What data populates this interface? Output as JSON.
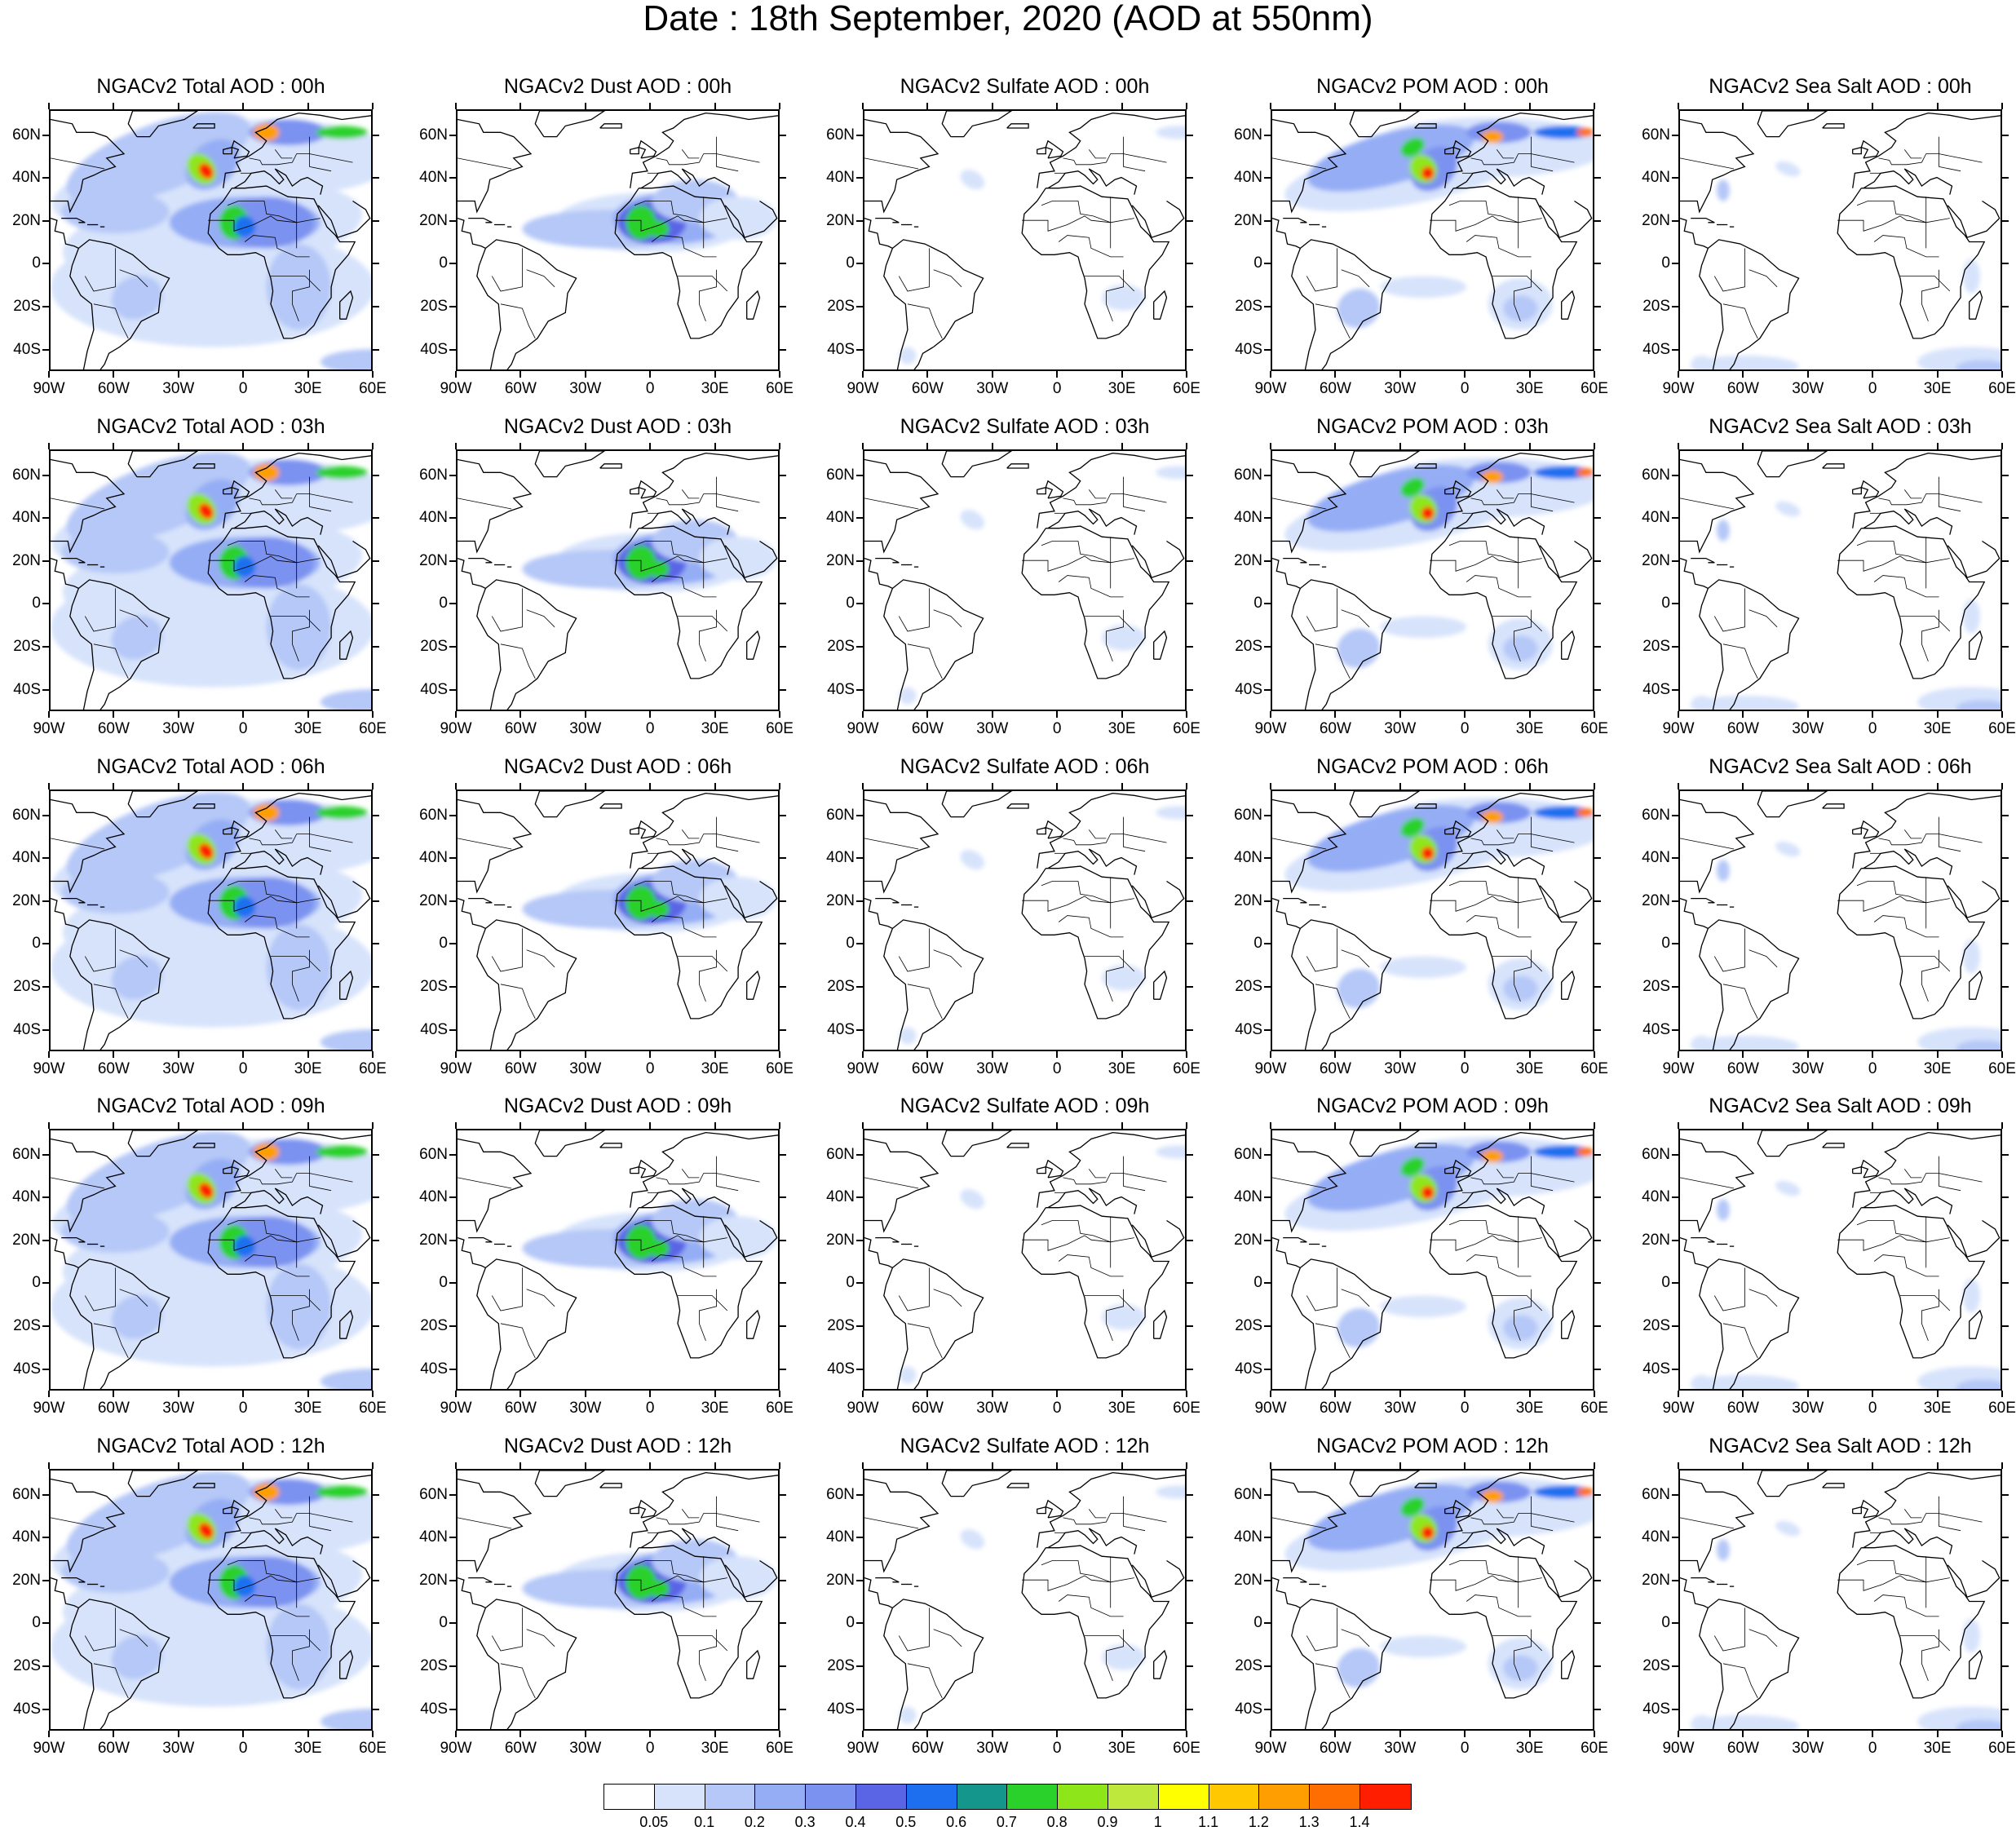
{
  "title": "Date : 18th September, 2020 (AOD at 550nm)",
  "panels": [
    {
      "row": 0,
      "col": 0,
      "title": "NGACv2 Total AOD : 00h",
      "field": "total"
    },
    {
      "row": 0,
      "col": 1,
      "title": "NGACv2 Dust AOD : 00h",
      "field": "dust"
    },
    {
      "row": 0,
      "col": 2,
      "title": "NGACv2 Sulfate AOD : 00h",
      "field": "sulfate"
    },
    {
      "row": 0,
      "col": 3,
      "title": "NGACv2 POM AOD : 00h",
      "field": "pom"
    },
    {
      "row": 0,
      "col": 4,
      "title": "NGACv2 Sea Salt AOD : 00h",
      "field": "seasalt"
    },
    {
      "row": 1,
      "col": 0,
      "title": "NGACv2 Total AOD : 03h",
      "field": "total"
    },
    {
      "row": 1,
      "col": 1,
      "title": "NGACv2 Dust AOD : 03h",
      "field": "dust"
    },
    {
      "row": 1,
      "col": 2,
      "title": "NGACv2 Sulfate AOD : 03h",
      "field": "sulfate"
    },
    {
      "row": 1,
      "col": 3,
      "title": "NGACv2 POM AOD : 03h",
      "field": "pom"
    },
    {
      "row": 1,
      "col": 4,
      "title": "NGACv2 Sea Salt AOD : 03h",
      "field": "seasalt"
    },
    {
      "row": 2,
      "col": 0,
      "title": "NGACv2 Total AOD : 06h",
      "field": "total"
    },
    {
      "row": 2,
      "col": 1,
      "title": "NGACv2 Dust AOD : 06h",
      "field": "dust"
    },
    {
      "row": 2,
      "col": 2,
      "title": "NGACv2 Sulfate AOD : 06h",
      "field": "sulfate"
    },
    {
      "row": 2,
      "col": 3,
      "title": "NGACv2 POM AOD : 06h",
      "field": "pom"
    },
    {
      "row": 2,
      "col": 4,
      "title": "NGACv2 Sea Salt AOD : 06h",
      "field": "seasalt"
    },
    {
      "row": 3,
      "col": 0,
      "title": "NGACv2 Total AOD : 09h",
      "field": "total"
    },
    {
      "row": 3,
      "col": 1,
      "title": "NGACv2 Dust AOD : 09h",
      "field": "dust"
    },
    {
      "row": 3,
      "col": 2,
      "title": "NGACv2 Sulfate AOD : 09h",
      "field": "sulfate"
    },
    {
      "row": 3,
      "col": 3,
      "title": "NGACv2 POM AOD : 09h",
      "field": "pom"
    },
    {
      "row": 3,
      "col": 4,
      "title": "NGACv2 Sea Salt  AOD : 09h",
      "field": "seasalt"
    },
    {
      "row": 4,
      "col": 0,
      "title": "NGACv2 Total AOD  : 12h",
      "field": "total"
    },
    {
      "row": 4,
      "col": 1,
      "title": "NGACv2 Dust AOD : 12h",
      "field": "dust"
    },
    {
      "row": 4,
      "col": 2,
      "title": "NGACv2 Sulfate AOD : 12h",
      "field": "sulfate"
    },
    {
      "row": 4,
      "col": 3,
      "title": "NGACv2 POM  AOD : 12h",
      "field": "pom"
    },
    {
      "row": 4,
      "col": 4,
      "title": "NGACv2 Sea Salt  AOD : 12h",
      "field": "seasalt"
    }
  ],
  "lat_labels": [
    "60N",
    "40N",
    "20N",
    "0",
    "20S",
    "40S"
  ],
  "lat_values": [
    60,
    40,
    20,
    0,
    -20,
    -40
  ],
  "lon_labels": [
    "90W",
    "60W",
    "30W",
    "0",
    "30E",
    "60E"
  ],
  "lon_values": [
    -90,
    -60,
    -30,
    0,
    30,
    60
  ],
  "map_extent": {
    "lon": [
      -90,
      60
    ],
    "lat": [
      -50,
      72
    ]
  },
  "colorbar": {
    "colors": [
      "#ffffff",
      "#d7e3fb",
      "#b5c8f7",
      "#95adf5",
      "#7c92f0",
      "#5a65e6",
      "#1e6ff0",
      "#14968c",
      "#2bd12b",
      "#8ee61a",
      "#bfe83c",
      "#ffff00",
      "#ffc800",
      "#ff9e00",
      "#ff6e00",
      "#ff1e00"
    ],
    "labels": [
      "0.05",
      "0.1",
      "0.2",
      "0.3",
      "0.4",
      "0.5",
      "0.6",
      "0.7",
      "0.8",
      "0.9",
      "1",
      "1.1",
      "1.2",
      "1.3",
      "1.4"
    ]
  }
}
